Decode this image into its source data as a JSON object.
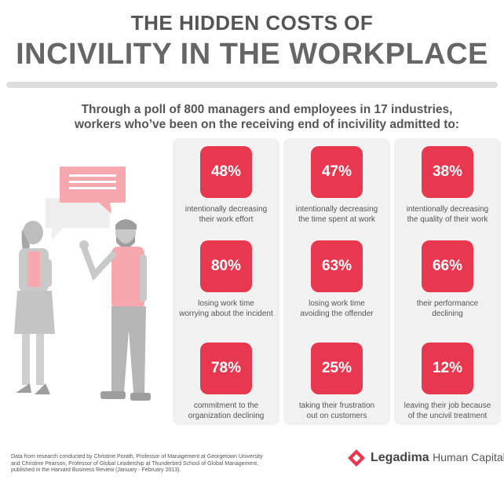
{
  "title": {
    "line1": "THE HIDDEN COSTS OF",
    "line2": "INCIVILITY IN THE WORKPLACE"
  },
  "intro": {
    "line1": "Through a poll of 800 managers and employees in 17 industries,",
    "line2": "workers who’ve been on the receiving end of incivility admitted to:"
  },
  "stats": [
    {
      "value": "48%",
      "l1": "intentionally decreasing",
      "l2": "their work effort"
    },
    {
      "value": "47%",
      "l1": "intentionally decreasing",
      "l2": "the time spent at work"
    },
    {
      "value": "38%",
      "l1": "intentionally decreasing",
      "l2": "the quality of their work"
    },
    {
      "value": "80%",
      "l1": "losing work time",
      "l2": "worrying about the incident"
    },
    {
      "value": "63%",
      "l1": "losing work time",
      "l2": "avoiding the offender"
    },
    {
      "value": "66%",
      "l1": "their performance",
      "l2": "declining"
    },
    {
      "value": "78%",
      "l1": "commitment to the",
      "l2": "organization declining"
    },
    {
      "value": "25%",
      "l1": "taking their frustration",
      "l2": "out on customers"
    },
    {
      "value": "12%",
      "l1": "leaving their job because",
      "l2": "of the uncivil treatment"
    }
  ],
  "footer": {
    "l1": "Data from research conducted by Christine Porath, Professor of Management at Georgetown University",
    "l2": "and Christine Pearson, Professor of Global Leadership at Thunderbird School of Global Management,",
    "l3": "published in the Harvard Business Review (January - February 2013)."
  },
  "brand": {
    "name": "Legadima",
    "sub": "Human Capital"
  },
  "colors": {
    "accent": "#e8384f",
    "panel": "#f1f1f1",
    "text": "#555555",
    "illustration_pink": "#f7a7ae"
  }
}
